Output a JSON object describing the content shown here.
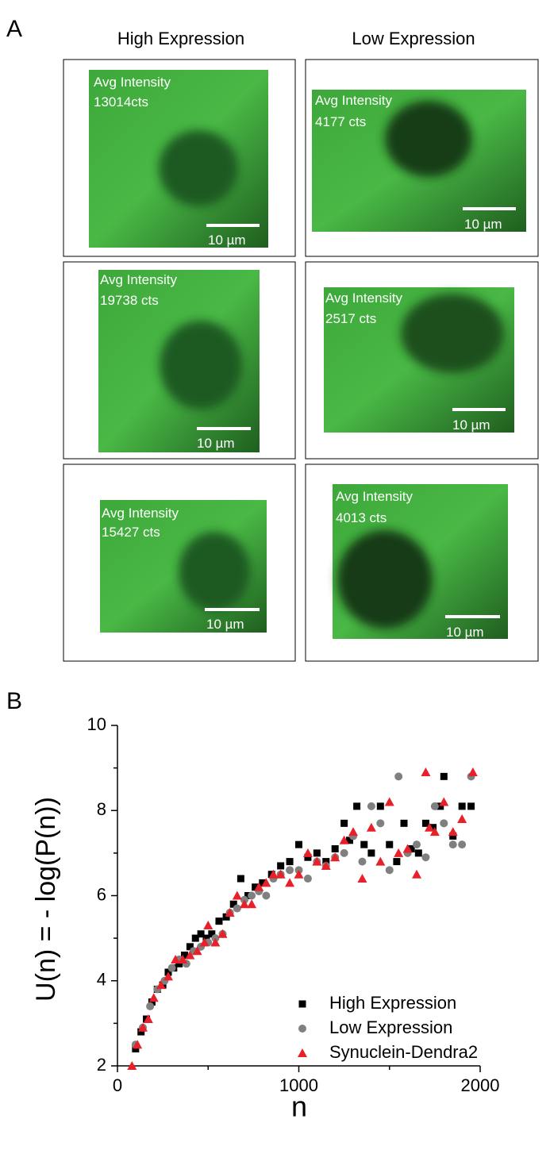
{
  "panel_a": {
    "label": "A",
    "columns": [
      "High Expression",
      "Low Expression"
    ],
    "images": [
      {
        "intensity_label": "Avg Intensity",
        "intensity": "13014cts",
        "scale_bar": "10 µm"
      },
      {
        "intensity_label": "Avg Intensity",
        "intensity": "4177 cts",
        "scale_bar": "10 µm"
      },
      {
        "intensity_label": "Avg Intensity",
        "intensity": "19738 cts",
        "scale_bar": "10 µm"
      },
      {
        "intensity_label": "Avg Intensity",
        "intensity": "2517 cts",
        "scale_bar": "10 µm"
      },
      {
        "intensity_label": "Avg Intensity",
        "intensity": "15427 cts",
        "scale_bar": "10 µm"
      },
      {
        "intensity_label": "Avg Intensity",
        "intensity": "4013 cts",
        "scale_bar": "10 µm"
      }
    ]
  },
  "chart_data": {
    "type": "scatter",
    "panel_label": "B",
    "x_label": "n",
    "y_label": "U(n) = - log(P(n))",
    "xlim": [
      0,
      2000
    ],
    "xticks": [
      0,
      1000,
      2000
    ],
    "xminorticks": [
      500,
      1500
    ],
    "ylim": [
      2,
      10
    ],
    "yticks": [
      2,
      4,
      6,
      8,
      10
    ],
    "yminorticks": [
      3,
      5,
      7,
      9
    ],
    "legend": "lower right",
    "series": [
      {
        "name": "High Expression",
        "color": "#000000",
        "marker": "square",
        "x": [
          100,
          130,
          160,
          190,
          220,
          250,
          280,
          310,
          340,
          370,
          400,
          430,
          460,
          490,
          520,
          560,
          600,
          640,
          680,
          720,
          760,
          800,
          850,
          900,
          950,
          1000,
          1050,
          1100,
          1150,
          1200,
          1250,
          1280,
          1320,
          1360,
          1400,
          1450,
          1500,
          1540,
          1580,
          1620,
          1660,
          1700,
          1740,
          1780,
          1800,
          1850,
          1900,
          1950
        ],
        "values": [
          2.4,
          2.8,
          3.1,
          3.5,
          3.8,
          3.9,
          4.2,
          4.3,
          4.4,
          4.6,
          4.8,
          5.0,
          5.1,
          5.0,
          5.1,
          5.4,
          5.5,
          5.8,
          6.4,
          6.0,
          6.2,
          6.3,
          6.5,
          6.7,
          6.8,
          7.2,
          6.9,
          7.0,
          6.8,
          7.1,
          7.7,
          7.3,
          8.1,
          7.2,
          7.0,
          8.1,
          7.2,
          6.8,
          7.7,
          7.1,
          7.0,
          7.7,
          7.6,
          8.1,
          8.8,
          7.4,
          8.1,
          8.1
        ]
      },
      {
        "name": "Low Expression",
        "color": "#808080",
        "marker": "circle",
        "x": [
          100,
          140,
          180,
          220,
          260,
          300,
          340,
          380,
          420,
          460,
          500,
          540,
          580,
          620,
          660,
          700,
          740,
          780,
          820,
          860,
          900,
          950,
          1000,
          1050,
          1100,
          1150,
          1200,
          1250,
          1300,
          1350,
          1400,
          1450,
          1500,
          1550,
          1600,
          1650,
          1700,
          1750,
          1800,
          1850,
          1900,
          1950
        ],
        "values": [
          2.5,
          2.9,
          3.4,
          3.8,
          4.0,
          4.3,
          4.5,
          4.4,
          4.7,
          4.8,
          4.9,
          5.0,
          5.1,
          5.6,
          5.7,
          5.9,
          6.0,
          6.1,
          6.0,
          6.4,
          6.5,
          6.6,
          6.6,
          6.4,
          6.8,
          6.7,
          6.9,
          7.0,
          7.4,
          6.8,
          8.1,
          7.7,
          6.6,
          8.8,
          7.0,
          7.2,
          6.9,
          8.1,
          7.7,
          7.2,
          7.2,
          8.8
        ]
      },
      {
        "name": "Synuclein-Dendra2",
        "color": "#e8202a",
        "marker": "triangle",
        "x": [
          80,
          110,
          140,
          170,
          200,
          240,
          280,
          320,
          360,
          400,
          440,
          480,
          500,
          540,
          580,
          620,
          660,
          700,
          740,
          780,
          820,
          860,
          900,
          950,
          1000,
          1050,
          1100,
          1150,
          1200,
          1250,
          1300,
          1350,
          1400,
          1450,
          1500,
          1550,
          1600,
          1650,
          1700,
          1720,
          1750,
          1800,
          1850,
          1900,
          1960
        ],
        "values": [
          2.0,
          2.5,
          2.9,
          3.1,
          3.6,
          3.9,
          4.1,
          4.5,
          4.5,
          4.6,
          4.7,
          4.9,
          5.3,
          4.9,
          5.1,
          5.6,
          6.0,
          5.8,
          5.8,
          6.2,
          6.3,
          6.5,
          6.5,
          6.3,
          6.5,
          7.0,
          6.8,
          6.7,
          6.9,
          7.3,
          7.5,
          6.4,
          7.6,
          6.8,
          8.2,
          7.0,
          7.1,
          6.5,
          8.9,
          7.6,
          7.5,
          8.2,
          7.5,
          7.8,
          8.9
        ]
      }
    ]
  }
}
